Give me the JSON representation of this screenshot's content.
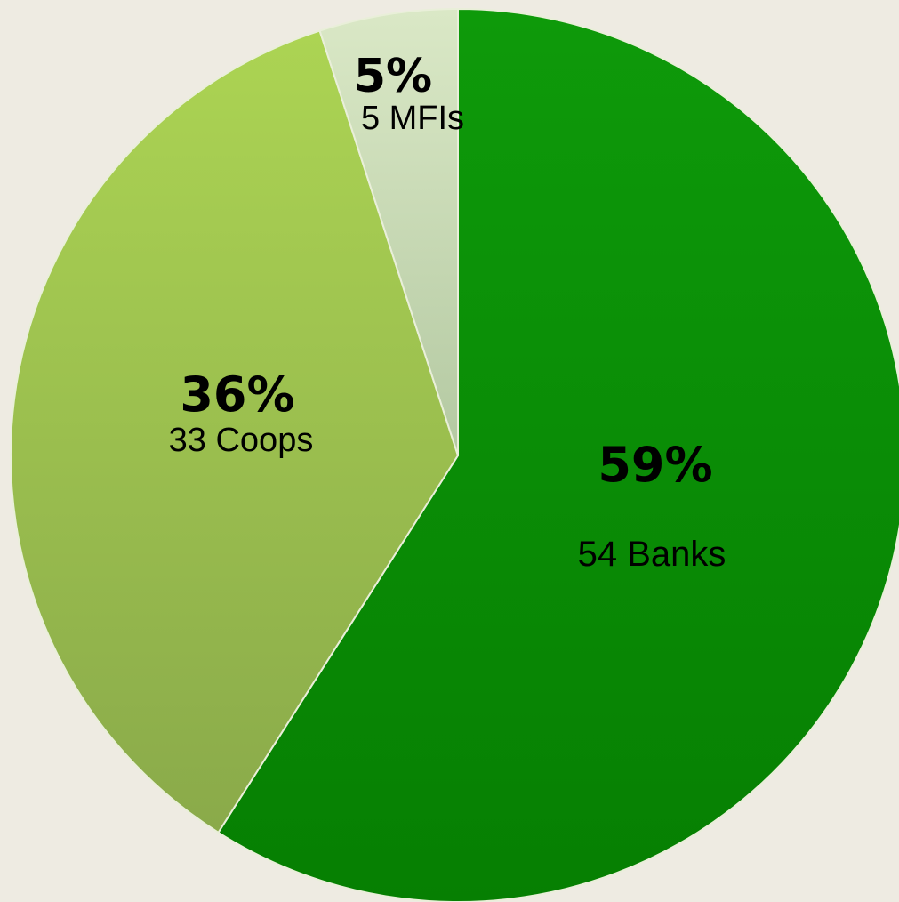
{
  "chart_data": {
    "type": "pie",
    "title": "",
    "start_angle_deg": 0,
    "direction": "clockwise",
    "slices": [
      {
        "label": "54 Banks",
        "count": 54,
        "percent_label": "59%",
        "value": 59,
        "color": "#0A8A05"
      },
      {
        "label": "33 Coops",
        "count": 33,
        "percent_label": "36%",
        "value": 36,
        "color": "#9CC653"
      },
      {
        "label": "5 MFIs",
        "count": 5,
        "percent_label": "5%",
        "value": 5,
        "color": "#C9DBAE"
      }
    ]
  },
  "background_color": "#EEEBE2"
}
